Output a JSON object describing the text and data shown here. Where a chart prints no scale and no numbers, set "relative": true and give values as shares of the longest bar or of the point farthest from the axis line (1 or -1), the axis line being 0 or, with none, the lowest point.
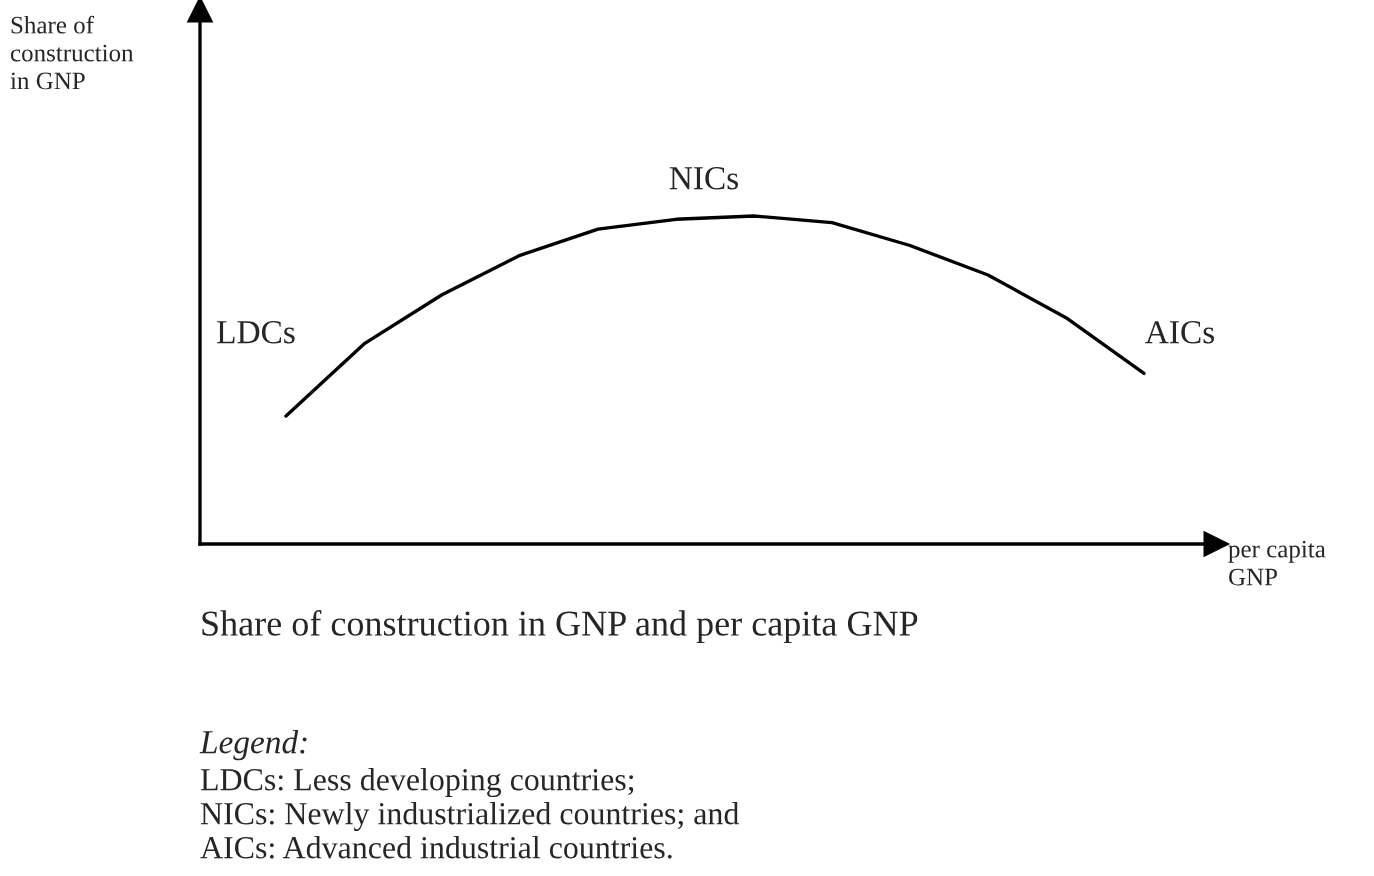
{
  "chart_data": {
    "type": "line",
    "relative": true,
    "xlabel": "per capita\nGNP",
    "categories": [
      null,
      null,
      null,
      null,
      null,
      null,
      null,
      null,
      null,
      null,
      null,
      null
    ],
    "series": [
      {
        "color": "#000000",
        "values": [
          0.39,
          0.61,
          0.76,
          0.88,
          0.96,
          0.99,
          1,
          0.98,
          0.91,
          0.82,
          0.69,
          0.52
        ]
      }
    ],
    "annotations": [
      "Share of\nconstruction\nin GNP",
      "LDCs",
      "NICs",
      "AICs",
      "Share of construction in GNP and per capita GNP",
      "Legend:",
      "LDCs: Less developing countries;",
      "NICs: Newly industrialized countries; and",
      "AICs: Advanced industrial countries."
    ]
  }
}
